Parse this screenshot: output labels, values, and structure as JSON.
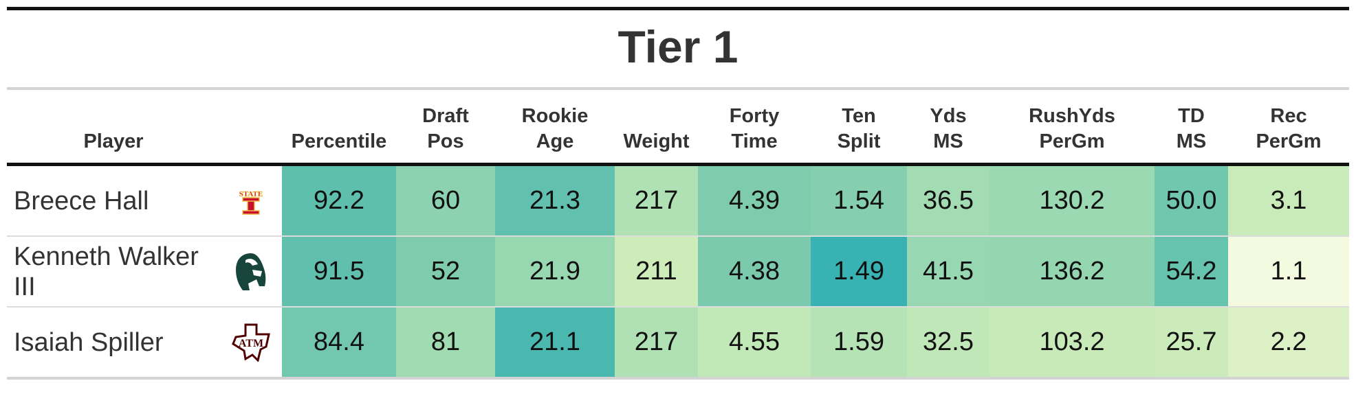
{
  "title": "Tier 1",
  "columns": [
    {
      "line1": "Player",
      "line2": ""
    },
    {
      "line1": "",
      "line2": ""
    },
    {
      "line1": "Percentile",
      "line2": ""
    },
    {
      "line1": "Draft",
      "line2": "Pos"
    },
    {
      "line1": "Rookie",
      "line2": "Age"
    },
    {
      "line1": "Weight",
      "line2": ""
    },
    {
      "line1": "Forty",
      "line2": "Time"
    },
    {
      "line1": "Ten",
      "line2": "Split"
    },
    {
      "line1": "Yds",
      "line2": "MS"
    },
    {
      "line1": "RushYds",
      "line2": "PerGm"
    },
    {
      "line1": "TD",
      "line2": "MS"
    },
    {
      "line1": "Rec",
      "line2": "PerGm"
    }
  ],
  "rows": [
    {
      "player": "Breece Hall",
      "logo": "iowa-state-logo",
      "cells": [
        "92.2",
        "60",
        "21.3",
        "217",
        "4.39",
        "1.54",
        "36.5",
        "130.2",
        "50.0",
        "3.1"
      ],
      "colors": [
        "#5fbfad",
        "#8dd2b0",
        "#61c0ae",
        "#b0e1b5",
        "#7fcbae",
        "#86cfae",
        "#a3dcb2",
        "#9ad9b1",
        "#71c7ae",
        "#c9ebb9"
      ]
    },
    {
      "player": "Kenneth Walker III",
      "logo": "michigan-state-logo",
      "cells": [
        "91.5",
        "52",
        "21.9",
        "211",
        "4.38",
        "1.49",
        "41.5",
        "136.2",
        "54.2",
        "1.1"
      ],
      "colors": [
        "#60bfad",
        "#7fcbae",
        "#98d8b1",
        "#cdecba",
        "#7bcaae",
        "#38b2b2",
        "#97d7b1",
        "#93d6b0",
        "#66c3ad",
        "#f3fadf"
      ]
    },
    {
      "player": "Isaiah Spiller",
      "logo": "texas-am-logo",
      "cells": [
        "84.4",
        "81",
        "21.1",
        "217",
        "4.55",
        "1.59",
        "32.5",
        "103.2",
        "25.7",
        "2.2"
      ],
      "colors": [
        "#72c7ae",
        "#a1dbb2",
        "#4ab8af",
        "#b0e1b5",
        "#c1e8b7",
        "#b5e3b5",
        "#c0e7b8",
        "#c7eab8",
        "#cbecba",
        "#dcf2c6"
      ]
    }
  ]
}
